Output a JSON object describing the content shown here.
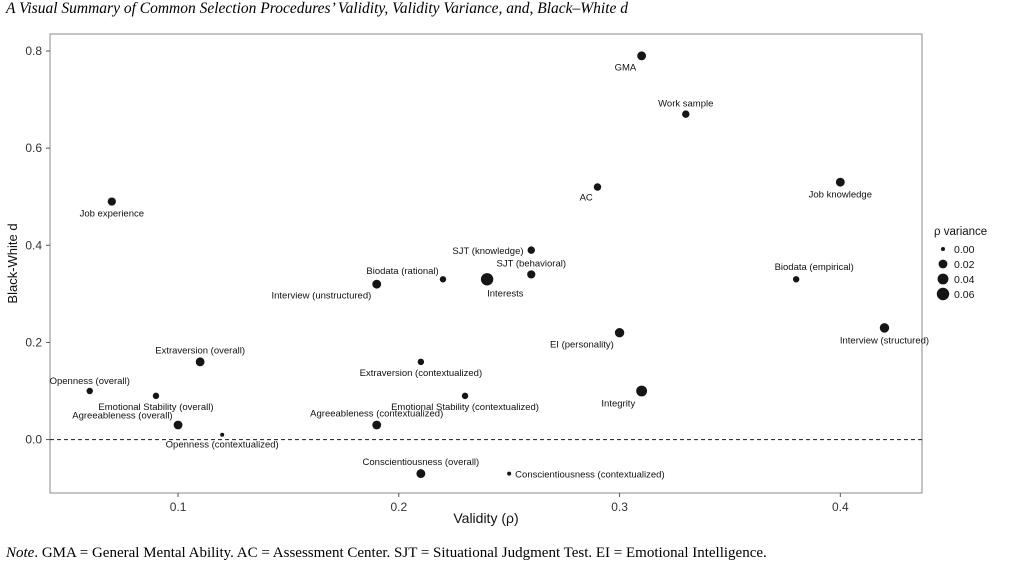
{
  "figure": {
    "title": "A Visual Summary of Common Selection Procedures’ Validity, Validity Variance, and, Black–White d",
    "note_lead": "Note",
    "note_text": ".   GMA = General Mental Ability. AC = Assessment Center. SJT = Situational Judgment Test. EI = Emotional Intelligence."
  },
  "chart_data": {
    "type": "scatter",
    "xlabel": "Validity (ρ)",
    "ylabel": "Black-White d",
    "xlim": [
      0.042,
      0.437
    ],
    "ylim": [
      -0.11,
      0.835
    ],
    "xticks": [
      0.1,
      0.2,
      0.3,
      0.4
    ],
    "yticks": [
      0.0,
      0.2,
      0.4,
      0.6,
      0.8
    ],
    "xtick_labels": [
      "0.1",
      "0.2",
      "0.3",
      "0.4"
    ],
    "ytick_labels": [
      "0.0",
      "0.2",
      "0.4",
      "0.6",
      "0.8"
    ],
    "reference_line": {
      "y": 0.0,
      "style": "dashed"
    },
    "grid": false,
    "legend": {
      "title": "ρ variance",
      "position": "right",
      "entries": [
        {
          "label": "0.00",
          "value": 0.0
        },
        {
          "label": "0.02",
          "value": 0.02
        },
        {
          "label": "0.04",
          "value": 0.04
        },
        {
          "label": "0.06",
          "value": 0.06
        }
      ]
    },
    "points": [
      {
        "label": "GMA",
        "x": 0.31,
        "y": 0.79,
        "size": 0.02,
        "label_pos": "bl"
      },
      {
        "label": "Work sample",
        "x": 0.33,
        "y": 0.67,
        "size": 0.01,
        "label_pos": "above"
      },
      {
        "label": "AC",
        "x": 0.29,
        "y": 0.52,
        "size": 0.01,
        "label_pos": "bl"
      },
      {
        "label": "Job knowledge",
        "x": 0.4,
        "y": 0.53,
        "size": 0.02,
        "label_pos": "below"
      },
      {
        "label": "Job experience",
        "x": 0.07,
        "y": 0.49,
        "size": 0.015,
        "label_pos": "below"
      },
      {
        "label": "SJT (knowledge)",
        "x": 0.26,
        "y": 0.39,
        "size": 0.01,
        "label_pos": "left"
      },
      {
        "label": "SJT (behavioral)",
        "x": 0.26,
        "y": 0.34,
        "size": 0.015,
        "label_pos": "above"
      },
      {
        "label": "Biodata (rational)",
        "x": 0.22,
        "y": 0.33,
        "size": 0.005,
        "label_pos": "tl"
      },
      {
        "label": "Interview (unstructured)",
        "x": 0.19,
        "y": 0.32,
        "size": 0.02,
        "label_pos": "bl"
      },
      {
        "label": "Interests",
        "x": 0.24,
        "y": 0.33,
        "size": 0.06,
        "label_pos": "br"
      },
      {
        "label": "Biodata (empirical)",
        "x": 0.38,
        "y": 0.33,
        "size": 0.005,
        "label_pos": "tl2"
      },
      {
        "label": "EI (personality)",
        "x": 0.3,
        "y": 0.22,
        "size": 0.025,
        "label_pos": "bl"
      },
      {
        "label": "Interview (structured)",
        "x": 0.42,
        "y": 0.23,
        "size": 0.025,
        "label_pos": "below"
      },
      {
        "label": "Extraversion (overall)",
        "x": 0.11,
        "y": 0.16,
        "size": 0.02,
        "label_pos": "above"
      },
      {
        "label": "Extraversion (contextualized)",
        "x": 0.21,
        "y": 0.16,
        "size": 0.005,
        "label_pos": "below"
      },
      {
        "label": "Openness (overall)",
        "x": 0.06,
        "y": 0.1,
        "size": 0.005,
        "label_pos": "above"
      },
      {
        "label": "Emotional Stability (overall)",
        "x": 0.09,
        "y": 0.09,
        "size": 0.005,
        "label_pos": "below"
      },
      {
        "label": "Emotional Stability (contextualized)",
        "x": 0.23,
        "y": 0.09,
        "size": 0.005,
        "label_pos": "below"
      },
      {
        "label": "Integrity",
        "x": 0.31,
        "y": 0.1,
        "size": 0.04,
        "label_pos": "bl"
      },
      {
        "label": "Agreeableness (overall)",
        "x": 0.1,
        "y": 0.03,
        "size": 0.02,
        "label_pos": "tl"
      },
      {
        "label": "Agreeableness (contextualized)",
        "x": 0.19,
        "y": 0.03,
        "size": 0.02,
        "label_pos": "above"
      },
      {
        "label": "Openness (contextualized)",
        "x": 0.12,
        "y": 0.01,
        "size": 0.0,
        "label_pos": "below"
      },
      {
        "label": "Conscientiousness (overall)",
        "x": 0.21,
        "y": -0.07,
        "size": 0.02,
        "label_pos": "above"
      },
      {
        "label": "Conscientiousness (contextualized)",
        "x": 0.25,
        "y": -0.07,
        "size": 0.0,
        "label_pos": "right"
      }
    ]
  }
}
